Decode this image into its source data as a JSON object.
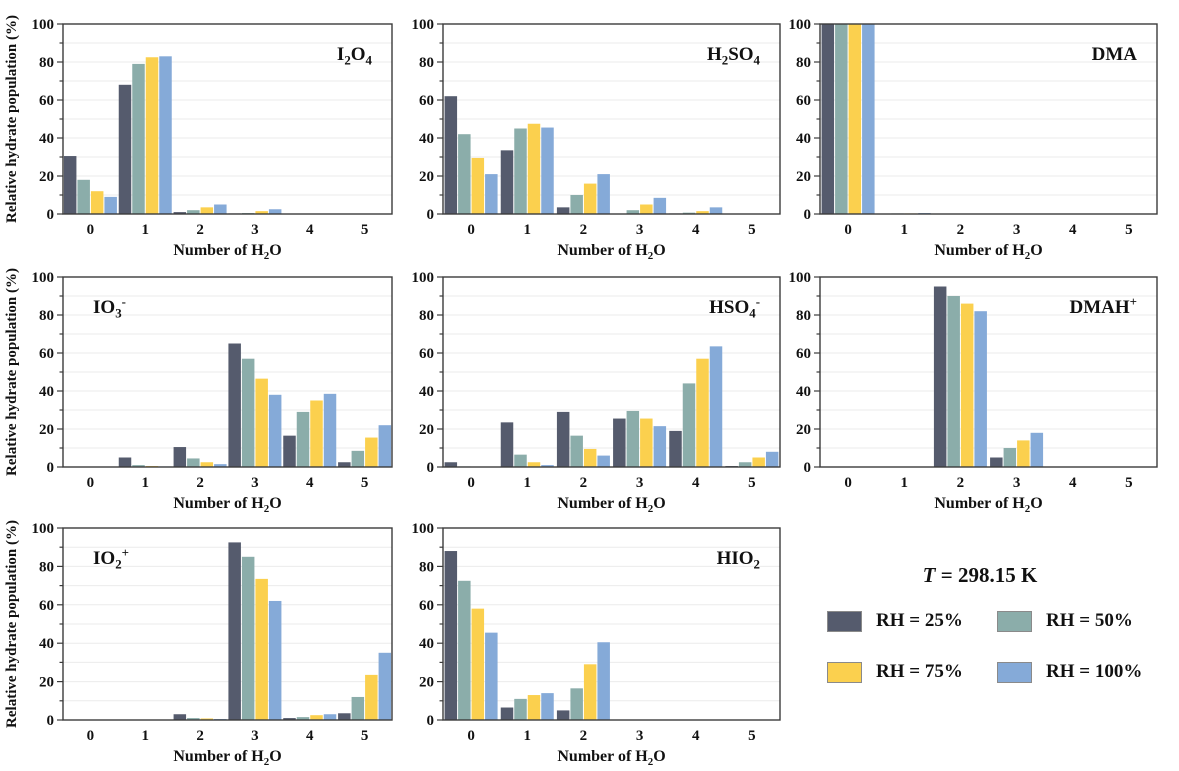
{
  "figure": {
    "temperature_var": "T",
    "temperature_rest": "= 298.15 K"
  },
  "legend": {
    "position": "bottom-right",
    "entries": [
      {
        "label": "RH = 25%",
        "color": "#555b6d"
      },
      {
        "label": "RH = 50%",
        "color": "#8badaa"
      },
      {
        "label": "RH = 75%",
        "color": "#fbd04e"
      },
      {
        "label": "RH = 100%",
        "color": "#85aad8"
      }
    ]
  },
  "chart_data": {
    "type": "bar",
    "title": "Relative hydrate populations vs number of H2O",
    "ylabel": "Relative hydrate population (%)",
    "xlabel_text": "Number of H2O",
    "xlabel_parts": [
      {
        "t": "Number of H"
      },
      {
        "t": "2",
        "v": "sub"
      },
      {
        "t": "O"
      }
    ],
    "ylim": [
      0,
      100
    ],
    "yticks": [
      0,
      20,
      40,
      60,
      80,
      100
    ],
    "grid": "horizontal every 10",
    "categories": [
      "0",
      "1",
      "2",
      "3",
      "4",
      "5"
    ],
    "series_names": [
      "RH = 25%",
      "RH = 50%",
      "RH = 75%",
      "RH = 100%"
    ],
    "colors": [
      "#555b6d",
      "#8badaa",
      "#fbd04e",
      "#85aad8"
    ],
    "annotation": "T = 298.15 K",
    "panels": [
      {
        "id": "i2o4",
        "title_text": "I2O4",
        "title_pos": "right",
        "title_parts": [
          {
            "t": "I"
          },
          {
            "t": "2",
            "v": "sub"
          },
          {
            "t": "O"
          },
          {
            "t": "4",
            "v": "sub"
          }
        ],
        "series": [
          {
            "name": "RH = 25%",
            "values": [
              30.5,
              68,
              1,
              0.3,
              0,
              0
            ]
          },
          {
            "name": "RH = 50%",
            "values": [
              18,
              79,
              2,
              0.5,
              0,
              0
            ]
          },
          {
            "name": "RH = 75%",
            "values": [
              12,
              82.5,
              3.5,
              1.5,
              0,
              0
            ]
          },
          {
            "name": "RH = 100%",
            "values": [
              9,
              83,
              5,
              2.5,
              0,
              0
            ]
          }
        ]
      },
      {
        "id": "h2so4",
        "title_text": "H2SO4",
        "title_pos": "right",
        "title_parts": [
          {
            "t": "H"
          },
          {
            "t": "2",
            "v": "sub"
          },
          {
            "t": "SO"
          },
          {
            "t": "4",
            "v": "sub"
          }
        ],
        "series": [
          {
            "name": "RH = 25%",
            "values": [
              62,
              33.5,
              3.5,
              0,
              0.3,
              0
            ]
          },
          {
            "name": "RH = 50%",
            "values": [
              42,
              45,
              10,
              2,
              0.7,
              0
            ]
          },
          {
            "name": "RH = 75%",
            "values": [
              29.5,
              47.5,
              16,
              5,
              1.5,
              0
            ]
          },
          {
            "name": "RH = 100%",
            "values": [
              21,
              45.5,
              21,
              8.5,
              3.5,
              0
            ]
          }
        ]
      },
      {
        "id": "dma",
        "title_text": "DMA",
        "title_pos": "right",
        "title_parts": [
          {
            "t": "DMA"
          }
        ],
        "series": [
          {
            "name": "RH = 25%",
            "values": [
              100,
              0,
              0,
              0,
              0,
              0
            ]
          },
          {
            "name": "RH = 50%",
            "values": [
              100,
              0.3,
              0,
              0,
              0,
              0
            ]
          },
          {
            "name": "RH = 75%",
            "values": [
              100,
              0.3,
              0,
              0,
              0,
              0
            ]
          },
          {
            "name": "RH = 100%",
            "values": [
              100,
              0.5,
              0,
              0,
              0,
              0
            ]
          }
        ]
      },
      {
        "id": "io3",
        "title_text": "IO3-",
        "title_pos": "left",
        "title_parts": [
          {
            "t": "IO"
          },
          {
            "t": "3",
            "v": "sub"
          },
          {
            "t": "-",
            "v": "sup"
          }
        ],
        "series": [
          {
            "name": "RH = 25%",
            "values": [
              0,
              5,
              10.5,
              65,
              16.5,
              2.5
            ]
          },
          {
            "name": "RH = 50%",
            "values": [
              0,
              1,
              4.5,
              57,
              29,
              8.5
            ]
          },
          {
            "name": "RH = 75%",
            "values": [
              0,
              0.5,
              2.5,
              46.5,
              35,
              15.5
            ]
          },
          {
            "name": "RH = 100%",
            "values": [
              0,
              0.3,
              1.5,
              38,
              38.5,
              22
            ]
          }
        ]
      },
      {
        "id": "hso4",
        "title_text": "HSO4-",
        "title_pos": "right",
        "title_parts": [
          {
            "t": "HSO"
          },
          {
            "t": "4",
            "v": "sub"
          },
          {
            "t": "-",
            "v": "sup"
          }
        ],
        "series": [
          {
            "name": "RH = 25%",
            "values": [
              2.5,
              23.5,
              29,
              25.5,
              19,
              0.5
            ]
          },
          {
            "name": "RH = 50%",
            "values": [
              0.3,
              6.5,
              16.5,
              29.5,
              44,
              2.5
            ]
          },
          {
            "name": "RH = 75%",
            "values": [
              0,
              2.5,
              9.5,
              25.5,
              57,
              5
            ]
          },
          {
            "name": "RH = 100%",
            "values": [
              0,
              1,
              6,
              21.5,
              63.5,
              8
            ]
          }
        ]
      },
      {
        "id": "dmah",
        "title_text": "DMAH+",
        "title_pos": "right",
        "title_parts": [
          {
            "t": "DMAH"
          },
          {
            "t": "+",
            "v": "sup"
          }
        ],
        "series": [
          {
            "name": "RH = 25%",
            "values": [
              0,
              0,
              95,
              5,
              0,
              0
            ]
          },
          {
            "name": "RH = 50%",
            "values": [
              0,
              0,
              90,
              10,
              0,
              0
            ]
          },
          {
            "name": "RH = 75%",
            "values": [
              0,
              0,
              86,
              14,
              0,
              0
            ]
          },
          {
            "name": "RH = 100%",
            "values": [
              0,
              0,
              82,
              18,
              0,
              0
            ]
          }
        ]
      },
      {
        "id": "io2",
        "title_text": "IO2+",
        "title_pos": "left",
        "title_parts": [
          {
            "t": "IO"
          },
          {
            "t": "2",
            "v": "sub"
          },
          {
            "t": "+",
            "v": "sup"
          }
        ],
        "series": [
          {
            "name": "RH = 25%",
            "values": [
              0,
              0,
              3,
              92.5,
              1,
              3.5
            ]
          },
          {
            "name": "RH = 50%",
            "values": [
              0,
              0,
              1,
              85,
              1.5,
              12
            ]
          },
          {
            "name": "RH = 75%",
            "values": [
              0,
              0,
              0.8,
              73.5,
              2.5,
              23.5
            ]
          },
          {
            "name": "RH = 100%",
            "values": [
              0,
              0,
              0.5,
              62,
              3,
              35
            ]
          }
        ]
      },
      {
        "id": "hio2",
        "title_text": "HIO2",
        "title_pos": "right",
        "title_parts": [
          {
            "t": "HIO"
          },
          {
            "t": "2",
            "v": "sub"
          }
        ],
        "series": [
          {
            "name": "RH = 25%",
            "values": [
              88,
              6.5,
              5,
              0,
              0,
              0
            ]
          },
          {
            "name": "RH = 50%",
            "values": [
              72.5,
              11,
              16.5,
              0,
              0,
              0
            ]
          },
          {
            "name": "RH = 75%",
            "values": [
              58,
              13,
              29,
              0,
              0,
              0
            ]
          },
          {
            "name": "RH = 100%",
            "values": [
              45.5,
              14,
              40.5,
              0,
              0,
              0
            ]
          }
        ]
      }
    ]
  }
}
